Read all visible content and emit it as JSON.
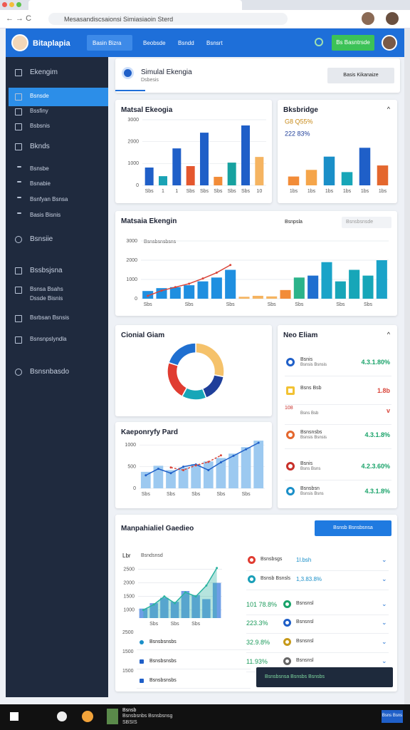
{
  "browser": {
    "url": "Mesasandiscsaionsi Simiasiaoin Sterd"
  },
  "header": {
    "brand": "Bitaplapia",
    "nav": [
      "Basin Bizra",
      "Beobsde",
      "Bsndd",
      "Bsnsrt"
    ],
    "action": "Bs Basntrsde"
  },
  "sidebar": {
    "items": [
      "Ekengim",
      "Bsnsde",
      "Bssfiny",
      "Bsbsnis",
      "Bknds",
      "Bsnsbe",
      "Bsnabie",
      "Bsnfyan Bsnsa",
      "Basis Bisnis",
      "Bsnsiie",
      "Bssbsjsna",
      "Bsnsa Bsahs",
      "Dssde Bisnis",
      "Bsrbsan Bsnsis",
      "Bsnsnpslyndla",
      "Bsnsnbasdo"
    ]
  },
  "page": {
    "title": "Simulal Ekengia",
    "subtitle": "Dsbesis",
    "button": "Basis Kikanaize"
  },
  "chart_data": [
    {
      "type": "bar",
      "title": "Matsal Ekeogia",
      "categories": [
        "Sbs",
        "1",
        "1",
        "Sbs",
        "Sbs",
        "Sbs",
        "Sbs",
        "Sbs",
        "10"
      ],
      "values": [
        815,
        420,
        1690,
        880,
        2410,
        390,
        1040,
        2740,
        1300
      ],
      "colors": [
        "#1f5fc8",
        "#1aa3b5",
        "#1f5fc8",
        "#e4572e",
        "#1f5fc8",
        "#f28c38",
        "#17a2a0",
        "#1f5fc8",
        "#f5b461"
      ],
      "ylim": [
        0,
        3000
      ],
      "yticks": [
        0,
        1000,
        2000,
        3000
      ],
      "grid": true
    },
    {
      "type": "bar",
      "title": "Bksbridge",
      "annotations": [
        "G8 Q55%",
        "222 83%"
      ],
      "categories": [
        "1bs",
        "1bs",
        "1bs",
        "1bs",
        "1bs",
        "1bs"
      ],
      "values": [
        20,
        35,
        65,
        30,
        85,
        45
      ],
      "colors": [
        "#f28c38",
        "#f5a54a",
        "#1a8fc8",
        "#17a6b8",
        "#1f5fc8",
        "#e4672e"
      ],
      "ylim": [
        0,
        100
      ]
    },
    {
      "type": "combo",
      "title": "Matsaia Ekengin",
      "subtitle": "Bsnsbsnsbsns",
      "legend": "Bsnpsla",
      "dropdown": "Bsnsbsnsde",
      "categories": [
        "Sbs",
        null,
        null,
        "Sbs",
        null,
        null,
        "Sbs",
        null,
        null,
        "Sbs",
        null,
        "Sbs",
        null,
        null,
        "Sbs",
        null,
        "Sbs",
        null
      ],
      "values": [
        400,
        550,
        600,
        700,
        900,
        1100,
        1500,
        100,
        150,
        120,
        450,
        1100,
        1200,
        1900,
        900,
        1500,
        1200,
        2000
      ],
      "colors": [
        "#1f8fe0",
        "#1f8fe0",
        "#1f8fe0",
        "#1f8fe0",
        "#1f8fe0",
        "#1f8fe0",
        "#1f8fe0",
        "#f5b461",
        "#f5b461",
        "#f5b461",
        "#f28c38",
        "#2bb38a",
        "#1f6fd0",
        "#1aa3c8",
        "#17a6b8",
        "#17a6b8",
        "#17a6b8",
        "#1aa3c8"
      ],
      "line": [
        150,
        420,
        600,
        780,
        1050,
        1350,
        1750,
        null,
        null,
        null,
        null,
        null,
        null,
        null,
        null,
        null,
        null,
        null
      ],
      "line_color": "#d9453a",
      "ylim": [
        0,
        3000
      ],
      "yticks": [
        0,
        1000,
        2000,
        3000
      ],
      "grid": true
    },
    {
      "type": "donut",
      "title": "Cionial Giam",
      "values": [
        28,
        16,
        14,
        22,
        20
      ],
      "colors": [
        "#f5c26b",
        "#1f3f9a",
        "#17a6b8",
        "#e03c31",
        "#1f6fd0"
      ]
    },
    {
      "type": "area",
      "title": "Kaeponryfy Pard",
      "categories": [
        "Sbs",
        null,
        "Sbs",
        null,
        "Sbs",
        null,
        "Sbs",
        null,
        "Sbs",
        null
      ],
      "values": [
        380,
        520,
        420,
        480,
        560,
        620,
        700,
        800,
        950,
        1100
      ],
      "bar_color": "#9cc9f0",
      "series": [
        {
          "color": "#1f5fc8",
          "values": [
            300,
            450,
            350,
            500,
            550,
            420,
            600,
            750,
            900,
            1050
          ]
        },
        {
          "color": "#d9453a",
          "values": [
            null,
            null,
            480,
            420,
            530,
            610,
            760,
            null,
            null,
            null
          ]
        }
      ],
      "ylim": [
        0,
        1200
      ],
      "yticks": [
        0,
        500,
        1000
      ],
      "grid": true
    },
    {
      "type": "area",
      "title": "Manpahialiel Gaedieo",
      "ylabel": "Lbr",
      "subtitle": "Bsndsnsd",
      "button": "Bsnsb Bsnsbsnsa",
      "categories": [
        null,
        "Sbs",
        null,
        "Sbs",
        null,
        "Sbs",
        null,
        null
      ],
      "values": [
        1050,
        1250,
        1450,
        1300,
        1700,
        1550,
        1400,
        2000
      ],
      "bar_color": "#6f9fe6",
      "series": [
        {
          "color": "#2bb3a0",
          "values": [
            1000,
            1200,
            1500,
            1250,
            1650,
            1500,
            1900,
            2550
          ]
        }
      ],
      "ylim": [
        700,
        2700
      ],
      "yticks": [
        1000,
        1500,
        2000,
        2500
      ],
      "grid": true
    }
  ],
  "alerts": {
    "title": "Neo Eliam",
    "rows": [
      {
        "label": "Bsnis",
        "sub": "Bsnsis Bsnsis",
        "value": "4.3.1.80%"
      },
      {
        "label": "Bsns Bsb",
        "sub": "",
        "value": "1.8b"
      },
      {
        "label": "108",
        "sub": "Bsns Bsb",
        "value": "v"
      },
      {
        "label": "Bsnsnsbs",
        "sub": "Bsnsis Bsnsis",
        "value": "4.3.1.8%"
      },
      {
        "label": "Bsnis",
        "sub": "Bsns Bsns",
        "value": "4.2.3.60%"
      },
      {
        "label": "Bsnsbsn",
        "sub": "Bsnsis Bsns",
        "value": "4.3.1.8%"
      }
    ]
  },
  "bottom_panel": {
    "left_rows": [
      {
        "num": "2500",
        "label": "Bsnsbsnsbs"
      },
      {
        "num": "1500",
        "label": "Bsnsbsnsbs"
      },
      {
        "num": "1500",
        "label": "Bsnsbsnsbs"
      }
    ],
    "rows": [
      {
        "label": "Bsnsbsgs",
        "value": "1l.bsh"
      },
      {
        "label": "Bsnsb Bsnsls",
        "value": "1,3.83.8%"
      },
      {
        "label": "101 78.8%",
        "value": "Bsnsnsl"
      },
      {
        "label": "223.3%",
        "value": "Bsnsnsl"
      },
      {
        "label": "32.9.8%",
        "value": "Bsnsnsl"
      },
      {
        "label": "11.93%",
        "value": "Bsnsnsl"
      }
    ],
    "toast": "Bsnsbsnsa Bsnsbs Bsnsbs"
  },
  "taskbar": {
    "app_title": "Bsnsb",
    "app_text": "Bsnsbsnbs Bsnsbsnsg",
    "app_sub": "SBSIS",
    "clock": "Bsns Bsns"
  }
}
